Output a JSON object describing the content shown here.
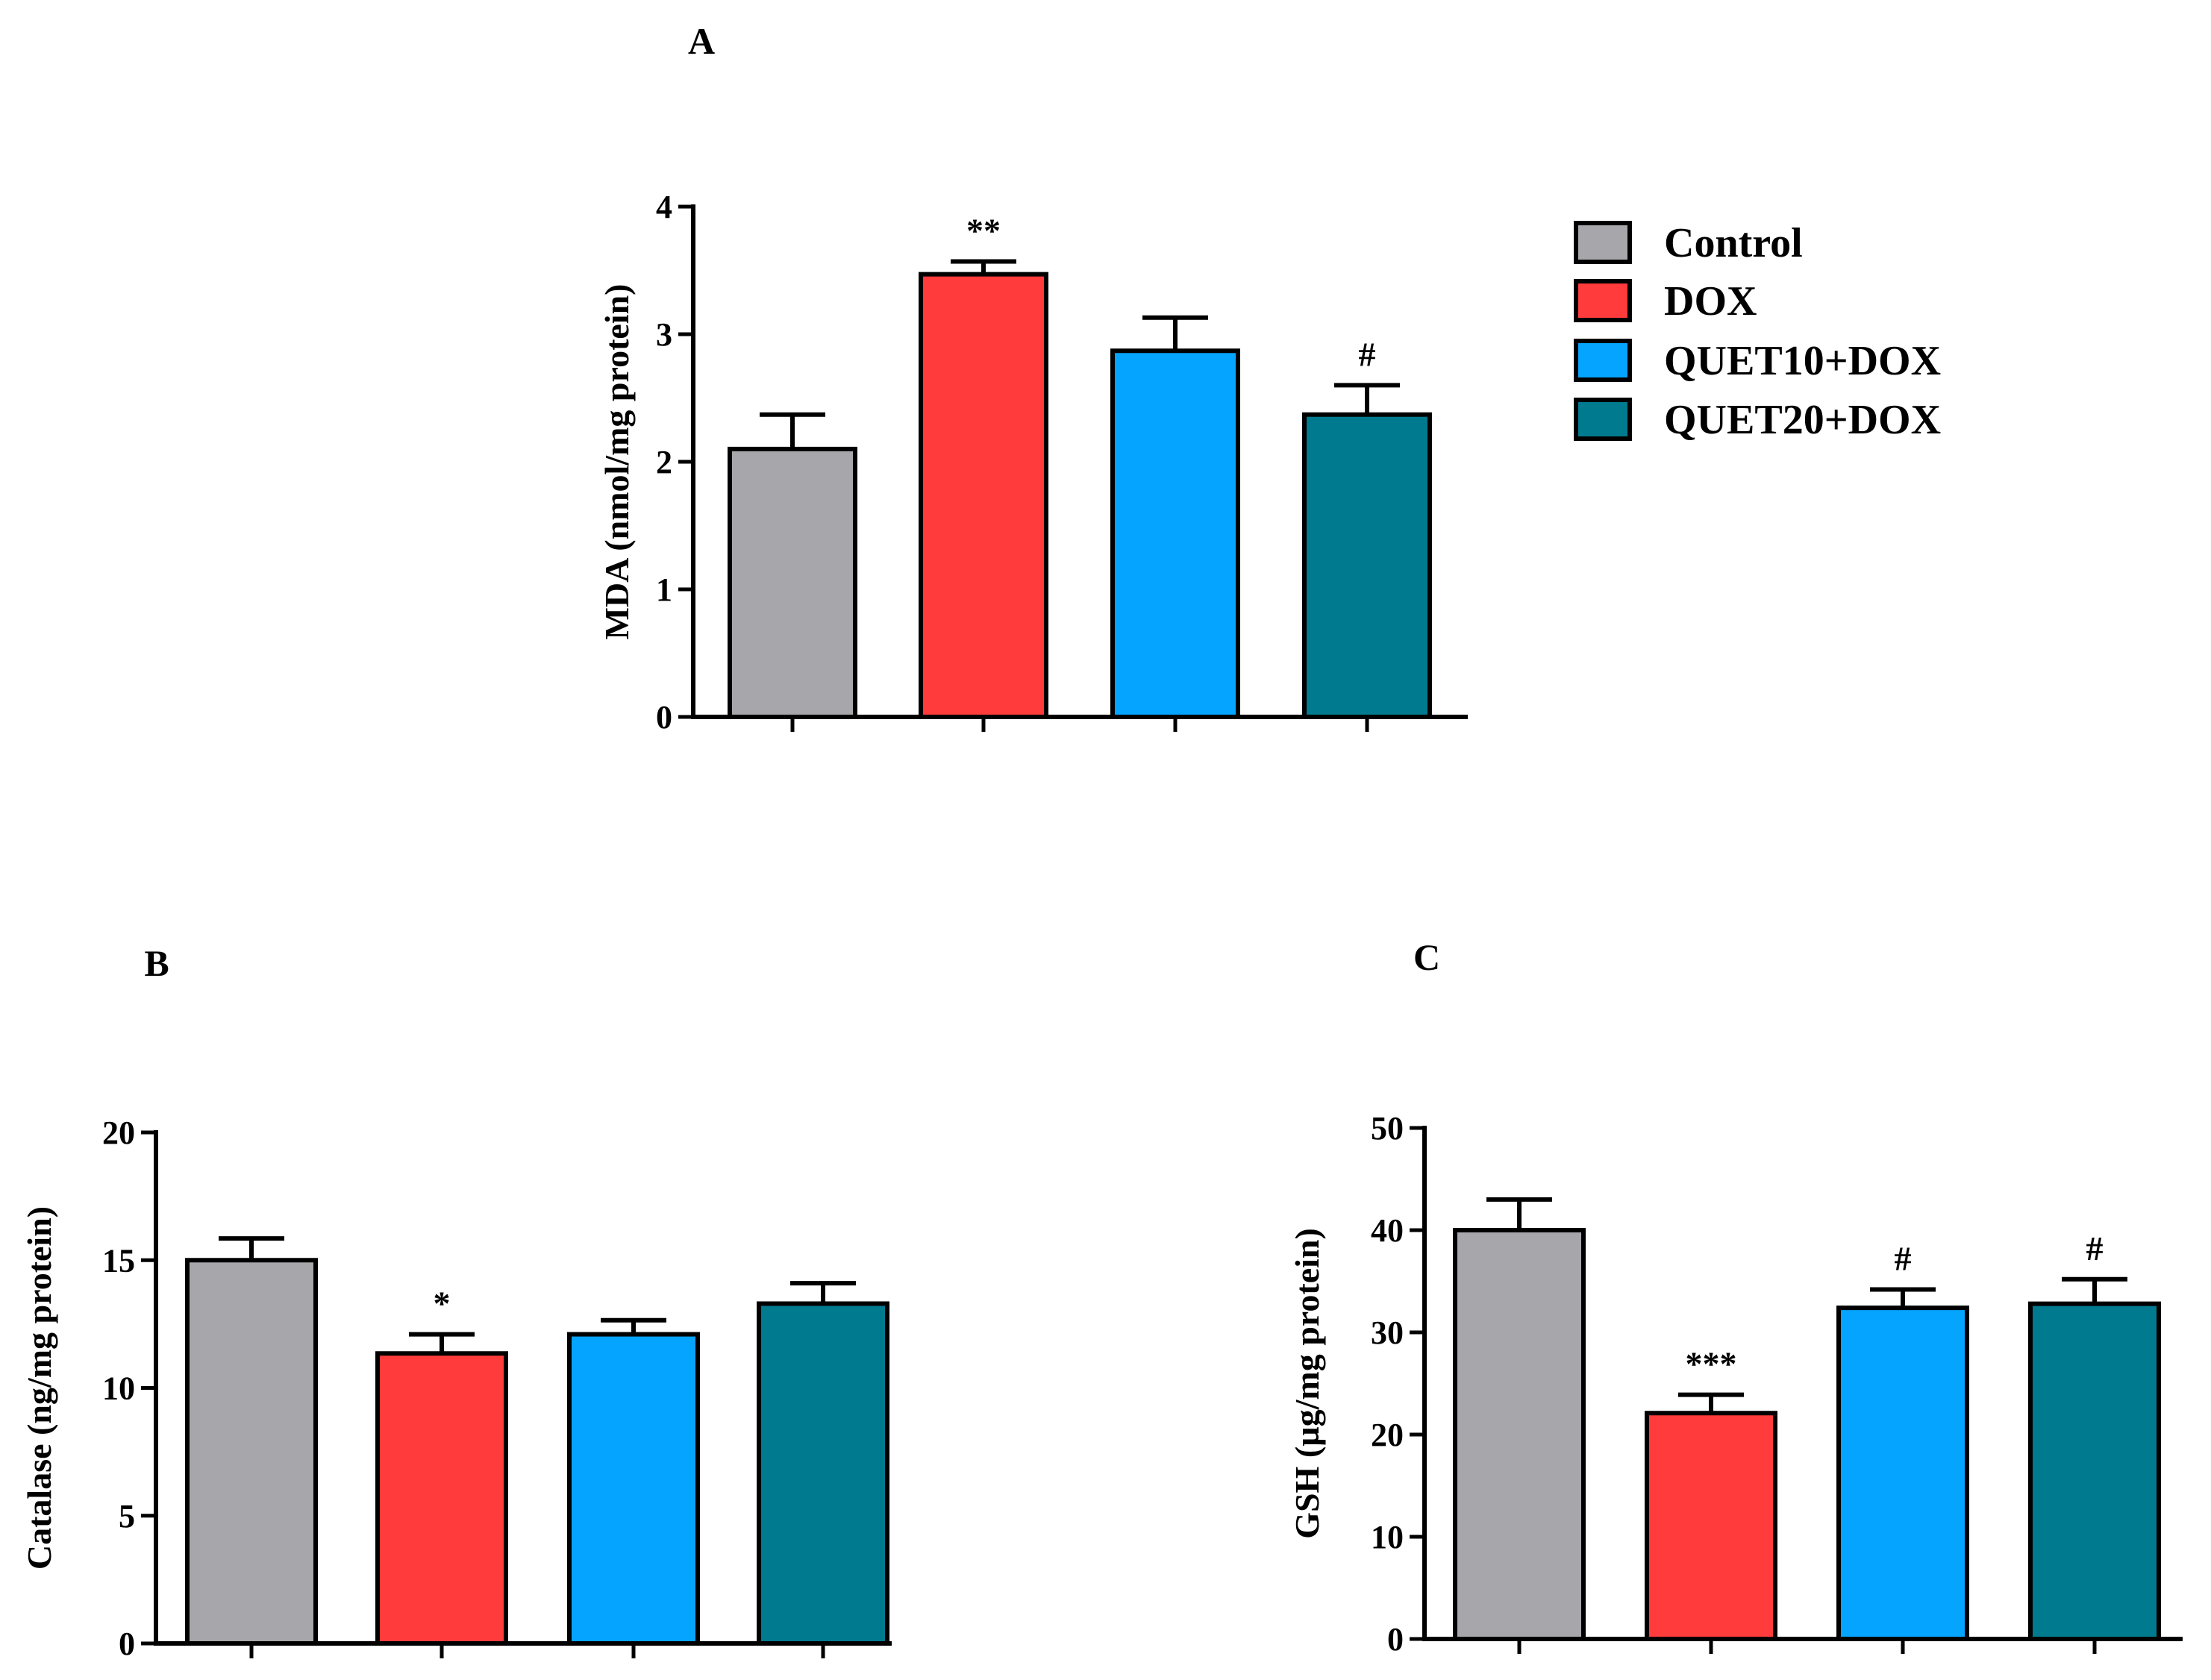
{
  "legend": [
    {
      "label": "Control",
      "color": "#a7a6aa"
    },
    {
      "label": "DOX",
      "color": "#ff3b3b"
    },
    {
      "label": "QUET10+DOX",
      "color": "#05a4ff"
    },
    {
      "label": "QUET20+DOX",
      "color": "#007a8e"
    }
  ],
  "chart_data": [
    {
      "type": "bar",
      "panel": "A",
      "ylabel": "MDA (nmol/mg protein)",
      "categories": [
        "Control",
        "DOX",
        "QUET10+DOX",
        "QUET20+DOX"
      ],
      "values": [
        2.1,
        3.47,
        2.87,
        2.37
      ],
      "errors": [
        0.27,
        0.1,
        0.26,
        0.23
      ],
      "significance": [
        "",
        "**",
        "",
        "#"
      ],
      "ylim": [
        0,
        4
      ],
      "yticks": [
        "0",
        "1",
        "2",
        "3",
        "4"
      ],
      "colors": [
        "#a7a6aa",
        "#ff3b3b",
        "#05a4ff",
        "#007a8e"
      ],
      "grid": false
    },
    {
      "type": "bar",
      "panel": "B",
      "ylabel": "Catalase (ng/mg protein)",
      "categories": [
        "Control",
        "DOX",
        "QUET10+DOX",
        "QUET20+DOX"
      ],
      "values": [
        15.0,
        11.35,
        12.1,
        13.3
      ],
      "errors": [
        0.85,
        0.75,
        0.55,
        0.8
      ],
      "significance": [
        "",
        "*",
        "",
        ""
      ],
      "ylim": [
        0,
        20
      ],
      "yticks": [
        "0",
        "5",
        "10",
        "15",
        "20"
      ],
      "colors": [
        "#a7a6aa",
        "#ff3b3b",
        "#05a4ff",
        "#007a8e"
      ],
      "grid": false
    },
    {
      "type": "bar",
      "panel": "C",
      "ylabel": "GSH (µg/mg protein)",
      "categories": [
        "Control",
        "DOX",
        "QUET10+DOX",
        "QUET20+DOX"
      ],
      "values": [
        40.0,
        22.1,
        32.4,
        32.8
      ],
      "errors": [
        3.0,
        1.8,
        1.8,
        2.4
      ],
      "significance": [
        "",
        "***",
        "#",
        "#"
      ],
      "ylim": [
        0,
        50
      ],
      "yticks": [
        "0",
        "10",
        "20",
        "30",
        "40",
        "50"
      ],
      "colors": [
        "#a7a6aa",
        "#ff3b3b",
        "#05a4ff",
        "#007a8e"
      ],
      "grid": false
    }
  ]
}
